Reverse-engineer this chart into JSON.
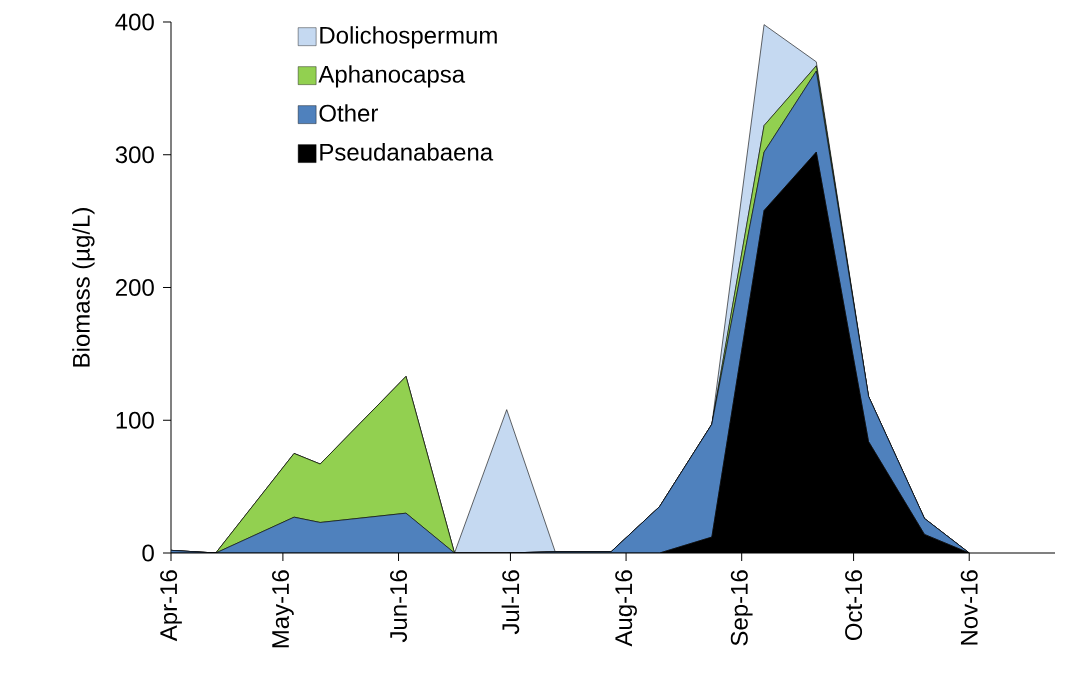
{
  "chart_data": {
    "type": "area",
    "stacked": true,
    "ylabel": "Biomass (µg/L)",
    "x": [
      "2016-04-01",
      "2016-04-13",
      "2016-05-04",
      "2016-05-11",
      "2016-06-03",
      "2016-06-16",
      "2016-06-30",
      "2016-07-13",
      "2016-07-28",
      "2016-08-10",
      "2016-08-24",
      "2016-09-07",
      "2016-09-21",
      "2016-10-05",
      "2016-10-20",
      "2016-11-01"
    ],
    "series": [
      {
        "name": "Pseudanabaena",
        "color": "#000000",
        "values": [
          0,
          0,
          0,
          0,
          0,
          0,
          0,
          0,
          0,
          0,
          12,
          258,
          302,
          84,
          14,
          0
        ]
      },
      {
        "name": "Other",
        "color": "#4f81bd",
        "values": [
          2,
          0,
          27,
          23,
          30,
          0,
          0,
          1,
          1,
          35,
          85,
          44,
          61,
          34,
          12,
          0
        ]
      },
      {
        "name": "Aphanocapsa",
        "color": "#92d050",
        "values": [
          0,
          0,
          48,
          44,
          103,
          0,
          0,
          0,
          0,
          0,
          0,
          20,
          4,
          0,
          0,
          0
        ]
      },
      {
        "name": "Dolichospermum",
        "color": "#c5d9f1",
        "values": [
          0,
          0,
          0,
          0,
          0,
          0,
          108,
          0,
          0,
          0,
          0,
          76,
          3,
          0,
          0,
          0
        ]
      }
    ],
    "xlim": [
      "2016-04-01",
      "2016-11-24"
    ],
    "xticks": [
      {
        "value": "2016-04-01",
        "label": "Apr-16"
      },
      {
        "value": "2016-05-01",
        "label": "May-16"
      },
      {
        "value": "2016-06-01",
        "label": "Jun-16"
      },
      {
        "value": "2016-07-01",
        "label": "Jul-16"
      },
      {
        "value": "2016-08-01",
        "label": "Aug-16"
      },
      {
        "value": "2016-09-01",
        "label": "Sep-16"
      },
      {
        "value": "2016-10-01",
        "label": "Oct-16"
      },
      {
        "value": "2016-11-01",
        "label": "Nov-16"
      }
    ],
    "ylim": [
      0,
      400
    ],
    "yticks": [
      0,
      100,
      200,
      300,
      400
    ],
    "legend": "top left"
  }
}
